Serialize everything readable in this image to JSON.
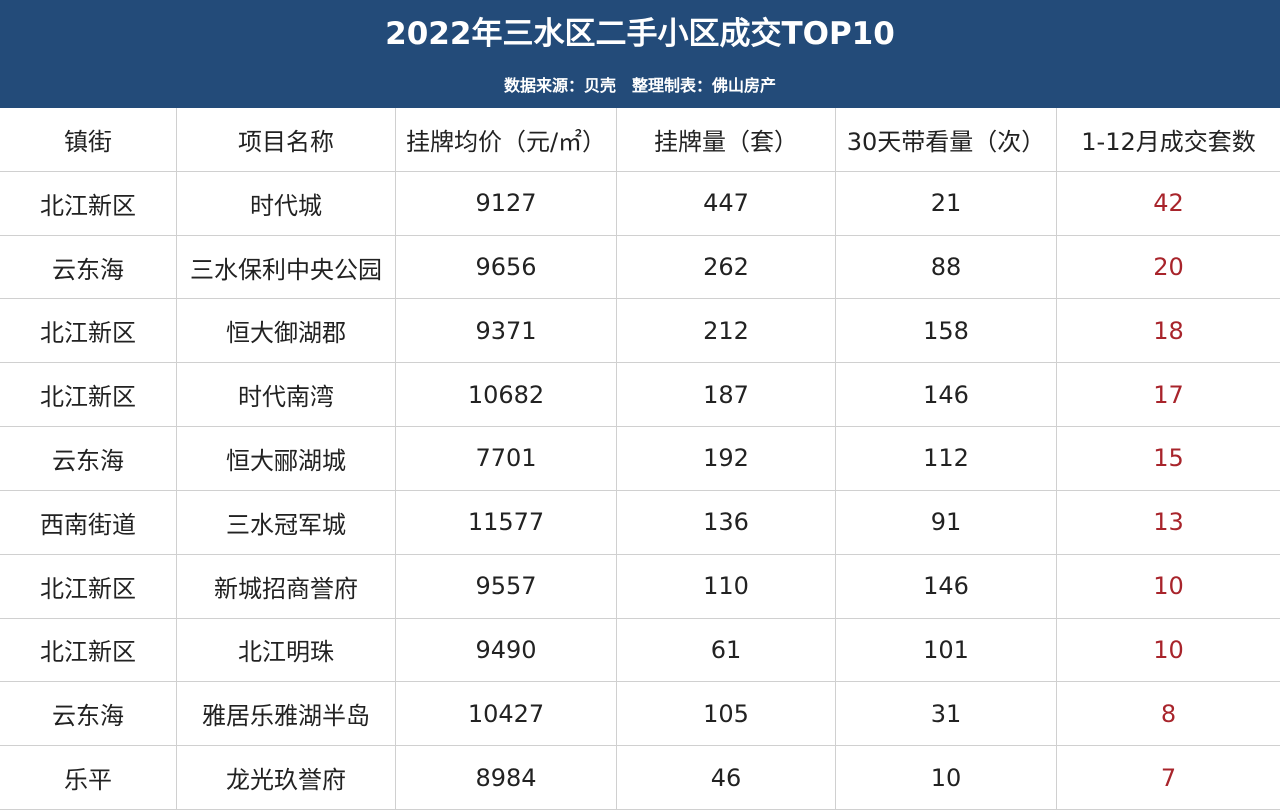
{
  "header": {
    "title": "2022年三水区二手小区成交TOP10",
    "subtitle": "数据来源：贝壳　整理制表：佛山房产"
  },
  "table": {
    "columns": [
      "镇街",
      "项目名称",
      "挂牌均价（元/㎡）",
      "挂牌量（套）",
      "30天带看量（次）",
      "1-12月成交套数"
    ],
    "rows": [
      [
        "北江新区",
        "时代城",
        "9127",
        "447",
        "21",
        "42"
      ],
      [
        "云东海",
        "三水保利中央公园",
        "9656",
        "262",
        "88",
        "20"
      ],
      [
        "北江新区",
        "恒大御湖郡",
        "9371",
        "212",
        "158",
        "18"
      ],
      [
        "北江新区",
        "时代南湾",
        "10682",
        "187",
        "146",
        "17"
      ],
      [
        "云东海",
        "恒大郦湖城",
        "7701",
        "192",
        "112",
        "15"
      ],
      [
        "西南街道",
        "三水冠军城",
        "11577",
        "136",
        "91",
        "13"
      ],
      [
        "北江新区",
        "新城招商誉府",
        "9557",
        "110",
        "146",
        "10"
      ],
      [
        "北江新区",
        "北江明珠",
        "9490",
        "61",
        "101",
        "10"
      ],
      [
        "云东海",
        "雅居乐雅湖半岛",
        "10427",
        "105",
        "31",
        "8"
      ],
      [
        "乐平",
        "龙光玖誉府",
        "8984",
        "46",
        "10",
        "7"
      ]
    ]
  }
}
